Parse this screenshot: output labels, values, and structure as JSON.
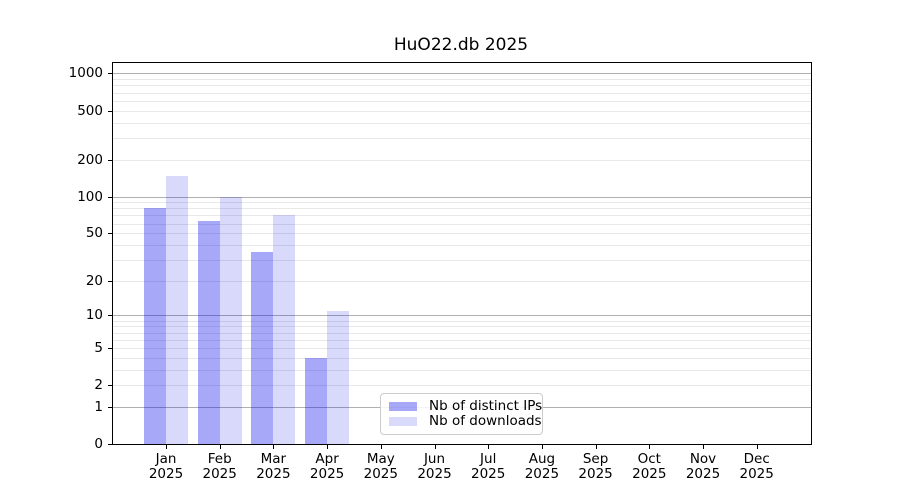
{
  "title": "HuO22.db 2025",
  "chart_data": {
    "type": "bar",
    "title": "HuO22.db 2025",
    "categories": [
      "Jan",
      "Feb",
      "Mar",
      "Apr",
      "May",
      "Jun",
      "Jul",
      "Aug",
      "Sep",
      "Oct",
      "Nov",
      "Dec"
    ],
    "category_year": "2025",
    "series": [
      {
        "name": "Nb of distinct IPs",
        "color": "rgba(0,0,235,0.34)",
        "color_hex_on_white": "#a8a8f8",
        "values": [
          80,
          63,
          35,
          4,
          0,
          0,
          0,
          0,
          0,
          0,
          0,
          0
        ]
      },
      {
        "name": "Nb of downloads",
        "color": "rgba(0,0,235,0.15)",
        "color_hex_on_white": "#d9d9fb",
        "values": [
          146,
          100,
          70,
          11,
          0,
          0,
          0,
          0,
          0,
          0,
          0,
          0
        ]
      }
    ],
    "y_scale": "log10(value+1)",
    "y_ticks": [
      0,
      1,
      2,
      5,
      10,
      20,
      50,
      100,
      200,
      500,
      1000
    ],
    "y_major_gridlines": [
      1,
      10,
      100,
      1000
    ],
    "y_minor_gridlines": [
      2,
      3,
      4,
      5,
      6,
      7,
      8,
      9,
      20,
      30,
      40,
      50,
      60,
      70,
      80,
      90,
      200,
      300,
      400,
      500,
      600,
      700,
      800,
      900
    ],
    "ylim": [
      0,
      1215
    ],
    "grid": {
      "major": true,
      "minor": true
    },
    "legend_position": "inside-bottom-center",
    "colors": {
      "major_grid": "#b0b0b0",
      "minor_grid": "#e8e8e8",
      "axis": "#000000",
      "legend_border": "#cccccc",
      "background": "#ffffff"
    }
  }
}
